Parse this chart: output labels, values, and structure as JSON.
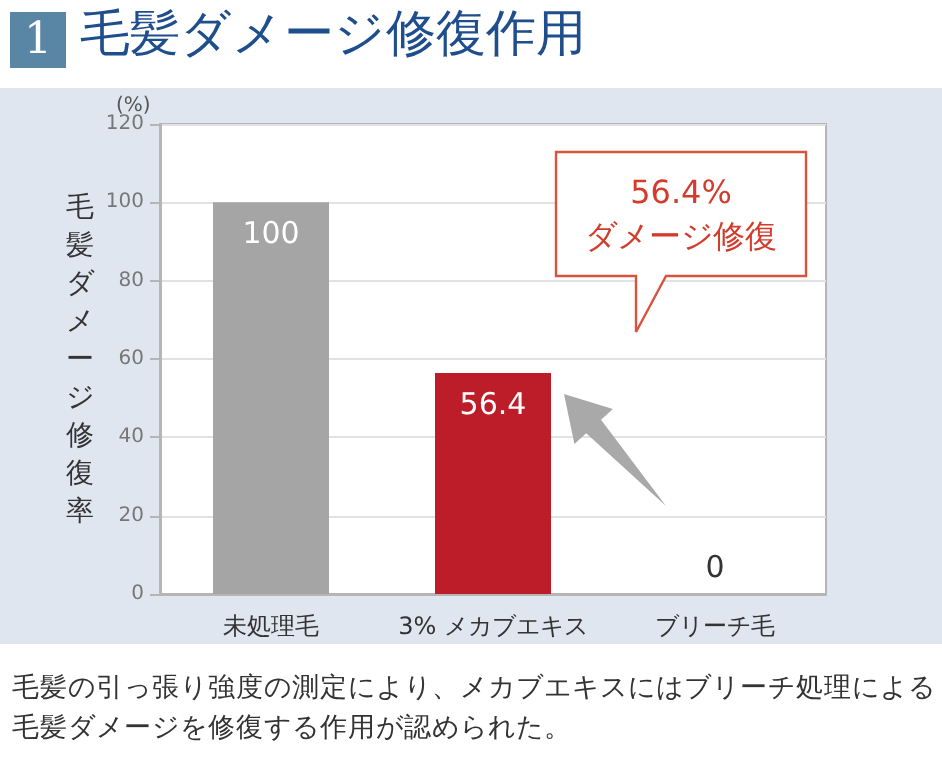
{
  "chart_data": {
    "type": "bar",
    "title": "毛髪ダメージ修復作用",
    "ylabel": "毛髪ダメージ修復率",
    "categories": [
      "未処理毛",
      "3% メカブエキス",
      "ブリーチ毛"
    ],
    "values": [
      100,
      56.4,
      0
    ],
    "colors": [
      "#a5a5a5",
      "#bc1d29",
      "#a5a5a5"
    ],
    "ylim": [
      0,
      120
    ],
    "yticks": [
      0,
      20,
      40,
      60,
      80,
      100,
      120
    ],
    "grid": "y",
    "data_labels": true,
    "annotations": [
      "1",
      "(%)",
      "56.4%\nダメージ修復",
      "毛髪の引っ張り強度の測定により、メカブエキスにはブリーチ処理による毛髪ダメージを修復する作用が認められた。"
    ]
  }
}
